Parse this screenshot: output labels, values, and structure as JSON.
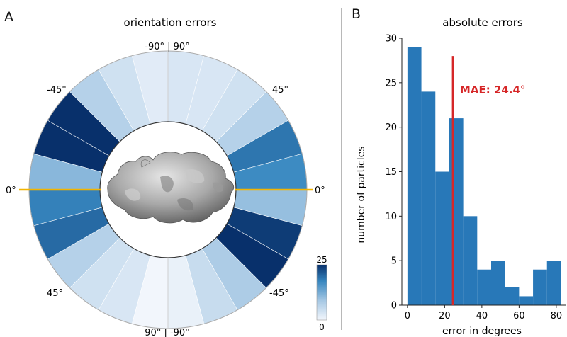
{
  "panels": {
    "a_label": "A",
    "b_label": "B"
  },
  "chart_data": [
    {
      "type": "polar-bar",
      "title": "orientation errors",
      "angle_labels": {
        "top": "-90° | 90°",
        "bottom": "90° | -90°",
        "left": "0°",
        "right": "0°",
        "upper_left": "-45°",
        "upper_right": "45°",
        "lower_left": "45°",
        "lower_right": "-45°"
      },
      "sector_values": [
        3,
        3,
        4,
        7,
        19,
        17,
        10,
        24,
        25,
        8,
        5,
        1,
        0,
        3,
        4,
        7,
        20,
        18,
        11,
        25,
        25,
        7,
        4,
        2
      ],
      "colorbar": {
        "min": 0,
        "max": 25,
        "min_label": "0",
        "max_label": "25"
      },
      "colors": {
        "low": "#f2f6fc",
        "high": "#08306b",
        "reference_line": "#f2b400"
      }
    },
    {
      "type": "bar",
      "title": "absolute errors",
      "xlabel": "error in degrees",
      "ylabel": "number of particles",
      "bin_edges": [
        0,
        7.5,
        15,
        22.5,
        30,
        37.5,
        45,
        52.5,
        60,
        67.5,
        75,
        82.5,
        90
      ],
      "values": [
        29,
        24,
        15,
        21,
        10,
        4,
        5,
        2,
        1,
        4,
        5,
        0
      ],
      "xlim": [
        -3,
        85
      ],
      "ylim": [
        0,
        30
      ],
      "xticks": [
        0,
        20,
        40,
        60,
        80
      ],
      "yticks": [
        0,
        5,
        10,
        15,
        20,
        25,
        30
      ],
      "annotation": {
        "text": "MAE: 24.4°",
        "x": 24.4
      },
      "colors": {
        "bar": "#2878b8",
        "mae_line": "#d62728"
      }
    }
  ]
}
